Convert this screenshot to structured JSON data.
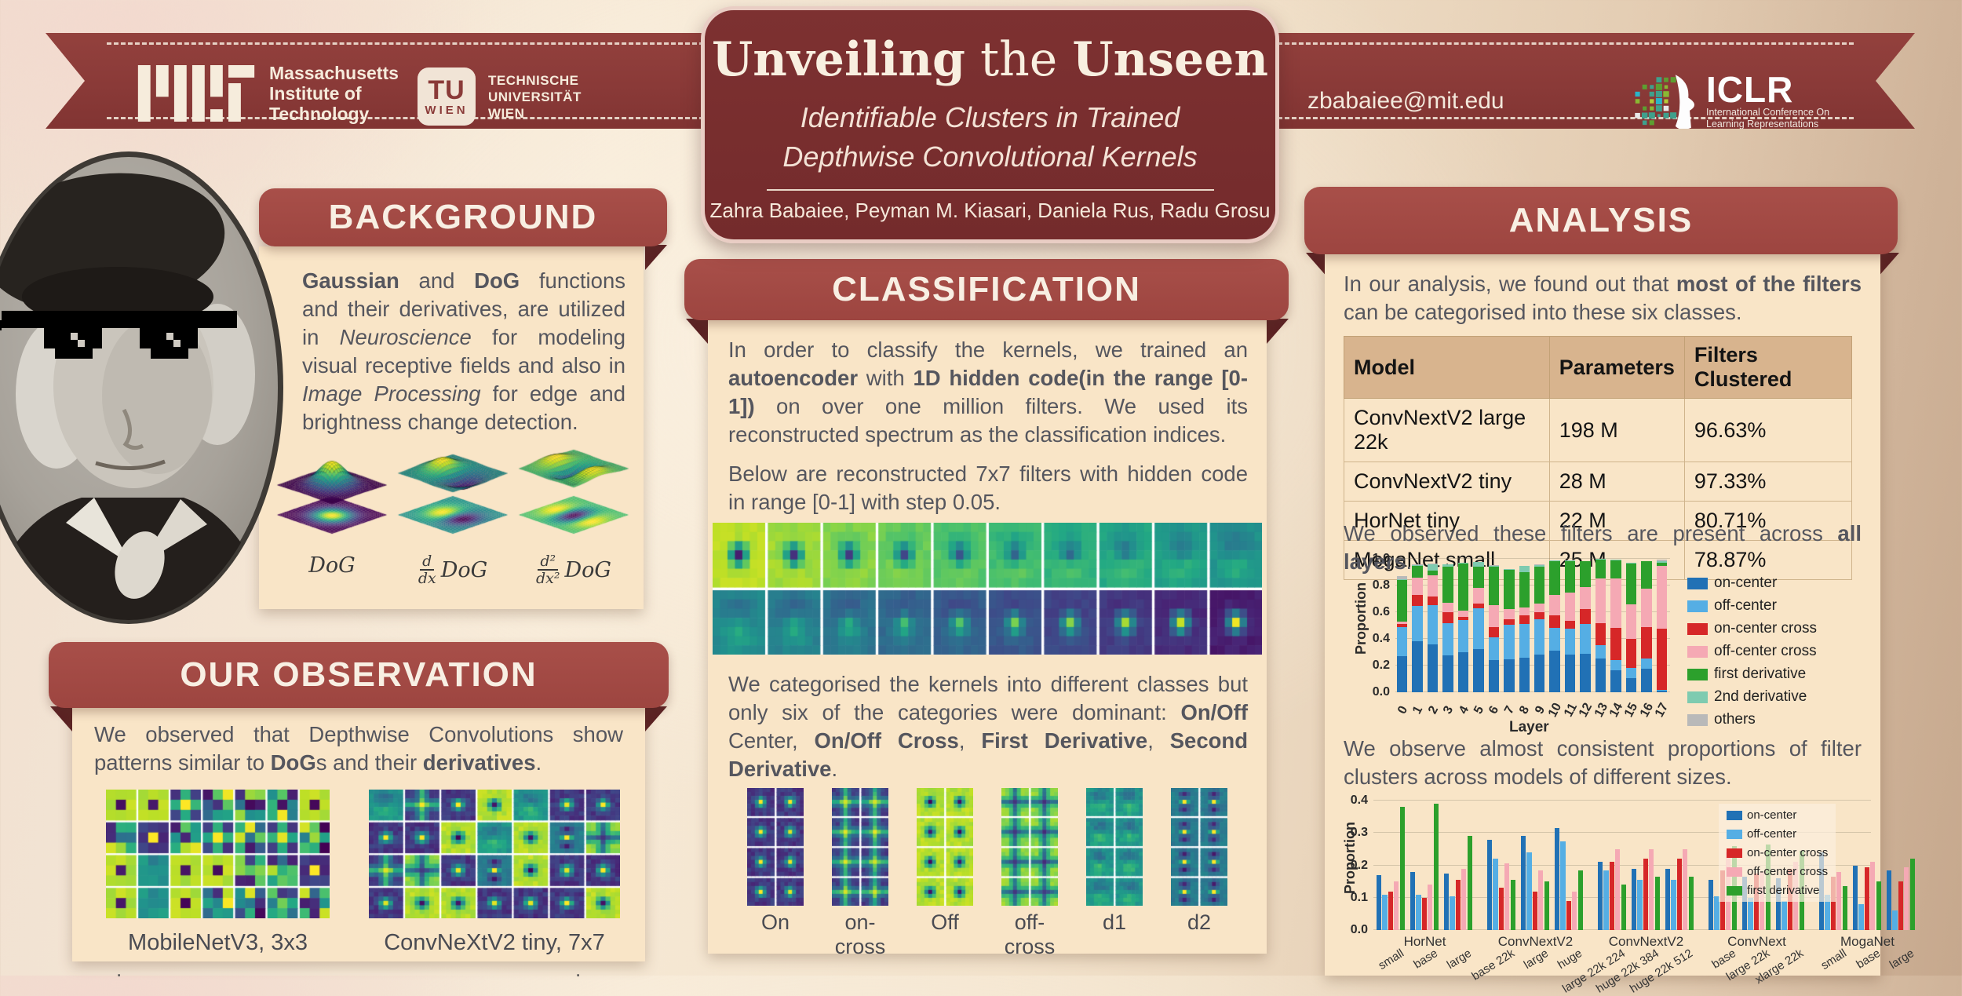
{
  "header": {
    "email": "zbabaiee@mit.edu",
    "mit_lines": [
      "Massachusetts",
      "Institute of",
      "Technology"
    ],
    "tu_box": {
      "tu": "TU",
      "wien": "WIEN"
    },
    "tu_lines": [
      "TECHNISCHE",
      "UNIVERSITÄT",
      "WIEN"
    ],
    "iclr": {
      "name": "ICLR",
      "sub1": "International Conference On",
      "sub2": "Learning Representations"
    }
  },
  "title_card": {
    "title_parts": [
      {
        "t": "Unveiling",
        "b": true
      },
      {
        "t": " the ",
        "b": false
      },
      {
        "t": "Unseen",
        "b": true
      }
    ],
    "subtitle1": "Identifiable Clusters in Trained",
    "subtitle2": "Depthwise Convolutional Kernels",
    "authors": "Zahra Babaiee, Peyman M. Kiasari, Daniela Rus, Radu Grosu"
  },
  "background": {
    "heading": "BACKGROUND",
    "paragraph": [
      {
        "t": "Gaussian",
        "b": true
      },
      {
        "t": " and "
      },
      {
        "t": "DoG",
        "b": true
      },
      {
        "t": " functions and their derivatives, are utilized in "
      },
      {
        "t": "Neuroscience",
        "i": true
      },
      {
        "t": " for modeling visual receptive fields and also in "
      },
      {
        "t": "Image Processing",
        "i": true
      },
      {
        "t": " for edge and brightness change detection."
      }
    ],
    "plots": [
      {
        "base": "DoG",
        "type": "dog"
      },
      {
        "num": "d",
        "den": "dx",
        "base": "DoG",
        "type": "ddx"
      },
      {
        "num": "d²",
        "den": "dx²",
        "base": "DoG",
        "type": "d2"
      }
    ]
  },
  "observation": {
    "heading": "OUR OBSERVATION",
    "paragraph": [
      {
        "t": "We observed that Depthwise Convolutions show patterns similar to "
      },
      {
        "t": "DoG",
        "b": true
      },
      {
        "t": "s and their "
      },
      {
        "t": "derivatives",
        "b": true
      },
      {
        "t": "."
      }
    ],
    "figures": [
      {
        "caption": "MobileNetV3, 3x3"
      },
      {
        "caption": "ConvNeXtV2 tiny, 7x7"
      }
    ]
  },
  "classification": {
    "heading": "CLASSIFICATION",
    "p1": [
      {
        "t": "In order to classify the kernels, we trained an "
      },
      {
        "t": "autoencoder",
        "b": true
      },
      {
        "t": " with "
      },
      {
        "t": "1D hidden code",
        "b": true
      },
      {
        "t": "(in the range [0-1])",
        "b": true
      },
      {
        "t": " on over one million filters. We used its reconstructed spectrum as the classification indices."
      }
    ],
    "p2": [
      {
        "t": "Below are reconstructed 7x7 filters with hidden code in range [0-1] with step 0.05."
      }
    ],
    "p3": [
      {
        "t": "We categorised the kernels into different classes but only six of the categories were dominant: "
      },
      {
        "t": "On/Off",
        "b": true
      },
      {
        "t": " Center, "
      },
      {
        "t": "On/Off Cross",
        "b": true
      },
      {
        "t": ", "
      },
      {
        "t": "First Derivative",
        "b": true
      },
      {
        "t": ", "
      },
      {
        "t": "Second Derivative",
        "b": true
      },
      {
        "t": "."
      }
    ],
    "categories": [
      {
        "label": "On",
        "type": "on"
      },
      {
        "label": "on-cross",
        "type": "oncross"
      },
      {
        "label": "Off",
        "type": "off"
      },
      {
        "label": "off-cross",
        "type": "offcross"
      },
      {
        "label": "d1",
        "type": "d1"
      },
      {
        "label": "d2",
        "type": "d2"
      }
    ]
  },
  "analysis": {
    "heading": "ANALYSIS",
    "p1": [
      {
        "t": "In our analysis, we found out that "
      },
      {
        "t": "most of the filters",
        "b": true
      },
      {
        "t": " can be categorised into these six classes."
      }
    ],
    "table": {
      "headers": [
        "Model",
        "Parameters",
        "Filters Clustered"
      ],
      "rows": [
        [
          "ConvNextV2 large 22k",
          "198 M",
          "96.63%"
        ],
        [
          "ConvNextV2 tiny",
          "28 M",
          "97.33%"
        ],
        [
          "HorNet tiny",
          "22 M",
          "80.71%"
        ],
        [
          "MogaNet small",
          "25 M",
          "78.87%"
        ]
      ]
    },
    "p2": [
      {
        "t": "We observed these filters are present across "
      },
      {
        "t": "all layers",
        "b": true
      },
      {
        "t": "."
      }
    ],
    "p3": [
      {
        "t": "We observe almost consistent proportions of filter clusters across models of different sizes."
      }
    ]
  },
  "chart_data": [
    {
      "type": "bar",
      "variant": "stacked",
      "title": "",
      "xlabel": "Layer",
      "ylabel": "Proportion",
      "ylim": [
        0,
        1.0
      ],
      "yticks": [
        0.0,
        0.2,
        0.4,
        0.6,
        0.8,
        1.0
      ],
      "legend_position": "right",
      "categories": [
        "0",
        "1",
        "2",
        "3",
        "4",
        "5",
        "6",
        "7",
        "8",
        "9",
        "10",
        "11",
        "12",
        "13",
        "14",
        "15",
        "16",
        "17"
      ],
      "series": [
        {
          "name": "on-center",
          "color": "#2171b5",
          "values": [
            0.27,
            0.38,
            0.36,
            0.275,
            0.3,
            0.325,
            0.24,
            0.245,
            0.26,
            0.28,
            0.31,
            0.285,
            0.29,
            0.255,
            0.165,
            0.105,
            0.175,
            0.01
          ]
        },
        {
          "name": "off-center",
          "color": "#55aee4",
          "values": [
            0.22,
            0.265,
            0.295,
            0.245,
            0.24,
            0.305,
            0.17,
            0.26,
            0.25,
            0.265,
            0.175,
            0.19,
            0.22,
            0.1,
            0.075,
            0.08,
            0.08,
            0.01
          ]
        },
        {
          "name": "on-center cross",
          "color": "#d62728",
          "values": [
            0.02,
            0.085,
            0.06,
            0.08,
            0.025,
            0.035,
            0.08,
            0.045,
            0.065,
            0.055,
            0.09,
            0.06,
            0.115,
            0.165,
            0.245,
            0.215,
            0.235,
            0.455
          ]
        },
        {
          "name": "off-center cross",
          "color": "#f5a9b4",
          "values": [
            0.02,
            0.13,
            0.16,
            0.07,
            0.045,
            0.115,
            0.165,
            0.075,
            0.06,
            0.065,
            0.155,
            0.215,
            0.165,
            0.335,
            0.37,
            0.26,
            0.285,
            0.47
          ]
        },
        {
          "name": "first derivative",
          "color": "#2ca02c",
          "values": [
            0.31,
            0.09,
            0.035,
            0.27,
            0.355,
            0.16,
            0.285,
            0.29,
            0.265,
            0.275,
            0.255,
            0.235,
            0.19,
            0.14,
            0.135,
            0.305,
            0.205,
            0.025
          ]
        },
        {
          "name": "2nd derivative",
          "color": "#7ecbb0",
          "values": [
            0.01,
            0.005,
            0.05,
            0.02,
            0.005,
            0.035,
            0.01,
            0.01,
            0.045,
            0.015,
            0.005,
            0.005,
            0.005,
            0.005,
            0.005,
            0.005,
            0.005,
            0.01
          ]
        },
        {
          "name": "others",
          "color": "#b9b9b9",
          "values": [
            0.02,
            0.005,
            0.005,
            0,
            0,
            0,
            0.005,
            0,
            0.005,
            0.005,
            0,
            0,
            0,
            0,
            0,
            0,
            0,
            0.015
          ]
        }
      ]
    },
    {
      "type": "bar",
      "variant": "grouped",
      "title": "",
      "xlabel": "",
      "ylabel": "Proportion",
      "ylim": [
        0,
        0.4
      ],
      "yticks": [
        0.0,
        0.1,
        0.2,
        0.3,
        0.4
      ],
      "legend_position": "upper right",
      "families": [
        {
          "name": "HorNet",
          "ticks": [
            "small",
            "base",
            "large"
          ]
        },
        {
          "name": "ConvNextV2",
          "ticks": [
            "base 22k",
            "large",
            "huge"
          ]
        },
        {
          "name": "ConvNextV2",
          "ticks": [
            "large 22k 224",
            "huge 22k 384",
            "huge 22k 512"
          ]
        },
        {
          "name": "ConvNext",
          "ticks": [
            "base",
            "large 22k",
            "xlarge 22k"
          ]
        },
        {
          "name": "MogaNet",
          "ticks": [
            "small",
            "base",
            "large"
          ]
        }
      ],
      "series": [
        {
          "name": "on-center",
          "color": "#2171b5",
          "values": [
            0.17,
            0.18,
            0.175,
            0.28,
            0.29,
            0.315,
            0.21,
            0.19,
            0.19,
            0.155,
            0.165,
            0.16,
            0.24,
            0.2,
            0.185
          ]
        },
        {
          "name": "off-center",
          "color": "#55aee4",
          "values": [
            0.11,
            0.11,
            0.105,
            0.22,
            0.24,
            0.275,
            0.185,
            0.155,
            0.155,
            0.105,
            0.1,
            0.09,
            0.11,
            0.08,
            0.06
          ]
        },
        {
          "name": "on-center cross",
          "color": "#d62728",
          "values": [
            0.12,
            0.1,
            0.155,
            0.13,
            0.12,
            0.09,
            0.21,
            0.22,
            0.22,
            0.185,
            0.175,
            0.19,
            0.165,
            0.195,
            0.15
          ]
        },
        {
          "name": "off-center cross",
          "color": "#f5a9b4",
          "values": [
            0.15,
            0.14,
            0.19,
            0.205,
            0.185,
            0.12,
            0.25,
            0.25,
            0.25,
            0.24,
            0.18,
            0.21,
            0.18,
            0.21,
            0.195
          ]
        },
        {
          "name": "first derivative",
          "color": "#2ca02c",
          "values": [
            0.38,
            0.39,
            0.29,
            0.155,
            0.15,
            0.185,
            0.14,
            0.165,
            0.165,
            0.26,
            0.265,
            0.245,
            0.135,
            0.15,
            0.22
          ]
        }
      ]
    }
  ],
  "decor": {
    "dot": "."
  }
}
